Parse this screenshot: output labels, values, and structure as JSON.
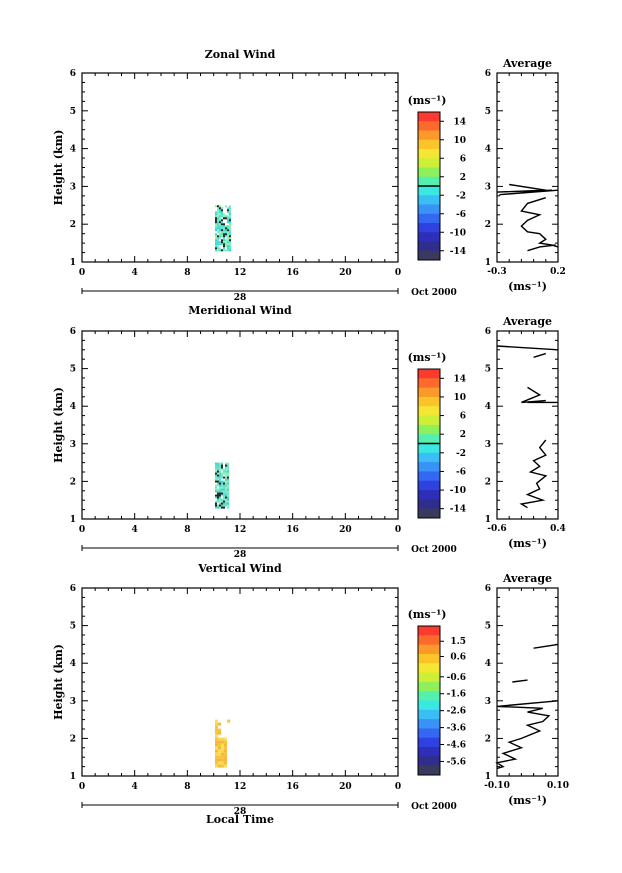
{
  "chart_data": [
    {
      "type": "heatmap",
      "title": "Zonal Wind",
      "ylabel": "Height (km)",
      "ylim": [
        1,
        6
      ],
      "xlim": [
        0,
        24
      ],
      "x_ticks": [
        "0",
        "4",
        "8",
        "12",
        "16",
        "20",
        "0"
      ],
      "y_ticks": [
        "1",
        "2",
        "3",
        "4",
        "5",
        "6"
      ],
      "date_label": "28",
      "month_label": "Oct 2000",
      "colorbar": {
        "unit": "(ms⁻¹)",
        "range": [
          -16,
          16
        ],
        "ticks": [
          "14",
          "10",
          "6",
          "2",
          "-2",
          "-6",
          "-10",
          "-14"
        ],
        "zero_line": 0
      },
      "data_region": {
        "x": [
          10.1,
          11.2
        ],
        "y": [
          1.3,
          2.5
        ],
        "dominant_color": "#5de8c8"
      },
      "profile": {
        "title": "Average",
        "xlabel": "(ms⁻¹)",
        "xlim": [
          -0.3,
          0.2
        ],
        "x_ticks": [
          "-0.3",
          "0.2"
        ],
        "y_ticks": [
          "1",
          "2",
          "3",
          "4",
          "5",
          "6"
        ],
        "segments": [
          [
            [
              -0.2,
              3.05
            ],
            [
              0.1,
              2.9
            ],
            [
              -0.3,
              2.85
            ],
            [
              0.15,
              2.9
            ],
            [
              -0.28,
              2.78
            ],
            [
              0.2,
              2.9
            ]
          ],
          [
            [
              0.1,
              2.7
            ],
            [
              -0.05,
              2.55
            ],
            [
              -0.1,
              2.35
            ],
            [
              0.05,
              2.25
            ],
            [
              -0.05,
              2.1
            ],
            [
              -0.1,
              1.95
            ],
            [
              -0.05,
              1.8
            ],
            [
              0.05,
              1.75
            ],
            [
              0.1,
              1.6
            ],
            [
              0.05,
              1.5
            ],
            [
              0.15,
              1.45
            ],
            [
              0.2,
              1.4
            ]
          ],
          [
            [
              -0.05,
              1.3
            ],
            [
              0.05,
              1.4
            ],
            [
              0.18,
              1.45
            ]
          ]
        ]
      }
    },
    {
      "type": "heatmap",
      "title": "Meridional Wind",
      "ylabel": "Height (km)",
      "ylim": [
        1,
        6
      ],
      "xlim": [
        0,
        24
      ],
      "x_ticks": [
        "0",
        "4",
        "8",
        "12",
        "16",
        "20",
        "0"
      ],
      "y_ticks": [
        "1",
        "2",
        "3",
        "4",
        "5",
        "6"
      ],
      "date_label": "28",
      "month_label": "Oct 2000",
      "colorbar": {
        "unit": "(ms⁻¹)",
        "range": [
          -16,
          16
        ],
        "ticks": [
          "14",
          "10",
          "6",
          "2",
          "-2",
          "-6",
          "-10",
          "-14"
        ],
        "zero_line": 0
      },
      "data_region": {
        "x": [
          10.1,
          11.1
        ],
        "y": [
          1.3,
          2.5
        ],
        "dominant_color": "#5de8c8"
      },
      "profile": {
        "title": "Average",
        "xlabel": "(ms⁻¹)",
        "xlim": [
          -0.6,
          0.4
        ],
        "x_ticks": [
          "-0.6",
          "0.4"
        ],
        "y_ticks": [
          "1",
          "2",
          "3",
          "4",
          "5",
          "6"
        ],
        "segments": [
          [
            [
              -0.6,
              5.6
            ],
            [
              0.4,
              5.5
            ]
          ],
          [
            [
              0.0,
              5.3
            ],
            [
              0.2,
              5.4
            ]
          ],
          [
            [
              -0.1,
              4.5
            ],
            [
              0.1,
              4.3
            ],
            [
              -0.05,
              4.2
            ],
            [
              -0.2,
              4.1
            ],
            [
              0.2,
              4.15
            ],
            [
              -0.1,
              4.1
            ],
            [
              0.4,
              4.1
            ]
          ],
          [
            [
              0.2,
              3.1
            ],
            [
              0.1,
              2.9
            ],
            [
              0.2,
              2.7
            ],
            [
              0.0,
              2.55
            ],
            [
              0.1,
              2.4
            ],
            [
              -0.05,
              2.25
            ],
            [
              0.2,
              2.15
            ],
            [
              0.05,
              1.95
            ],
            [
              0.1,
              1.8
            ],
            [
              -0.1,
              1.65
            ],
            [
              0.15,
              1.5
            ],
            [
              -0.2,
              1.4
            ],
            [
              -0.1,
              1.3
            ]
          ]
        ]
      }
    },
    {
      "type": "heatmap",
      "title": "Vertical Wind",
      "ylabel": "Height (km)",
      "xlabel": "Local Time",
      "ylim": [
        1,
        6
      ],
      "xlim": [
        0,
        24
      ],
      "x_ticks": [
        "0",
        "4",
        "8",
        "12",
        "16",
        "20",
        "0"
      ],
      "y_ticks": [
        "1",
        "2",
        "3",
        "4",
        "5",
        "6"
      ],
      "date_label": "28",
      "month_label": "Oct 2000",
      "colorbar": {
        "unit": "(ms⁻¹)",
        "range": [
          -6.4,
          2.4
        ],
        "ticks": [
          "1.5",
          "0.6",
          "-0.6",
          "-1.6",
          "-2.6",
          "-3.6",
          "-4.6",
          "-5.6"
        ],
        "zero_line": null
      },
      "data_region": {
        "x": [
          10.1,
          11.1
        ],
        "y": [
          1.25,
          2.5
        ],
        "dominant_color": "#f7c43a"
      },
      "profile": {
        "title": "Average",
        "xlabel": "(ms⁻¹)",
        "xlim": [
          -0.1,
          0.1
        ],
        "x_ticks": [
          "-0.10",
          "0.10"
        ],
        "y_ticks": [
          "1",
          "2",
          "3",
          "4",
          "5",
          "6"
        ],
        "segments": [
          [
            [
              0.1,
              4.5
            ],
            [
              0.02,
              4.4
            ]
          ],
          [
            [
              -0.05,
              3.5
            ],
            [
              0.0,
              3.55
            ]
          ],
          [
            [
              0.1,
              3.0
            ],
            [
              -0.1,
              2.85
            ],
            [
              0.05,
              2.8
            ],
            [
              0.0,
              2.7
            ],
            [
              0.07,
              2.6
            ],
            [
              0.05,
              2.45
            ],
            [
              0.0,
              2.35
            ],
            [
              0.04,
              2.2
            ],
            [
              -0.02,
              2.0
            ],
            [
              -0.06,
              1.9
            ],
            [
              -0.02,
              1.75
            ],
            [
              -0.08,
              1.6
            ],
            [
              -0.04,
              1.45
            ],
            [
              -0.1,
              1.35
            ],
            [
              -0.08,
              1.25
            ],
            [
              -0.1,
              1.2
            ]
          ]
        ]
      }
    }
  ]
}
